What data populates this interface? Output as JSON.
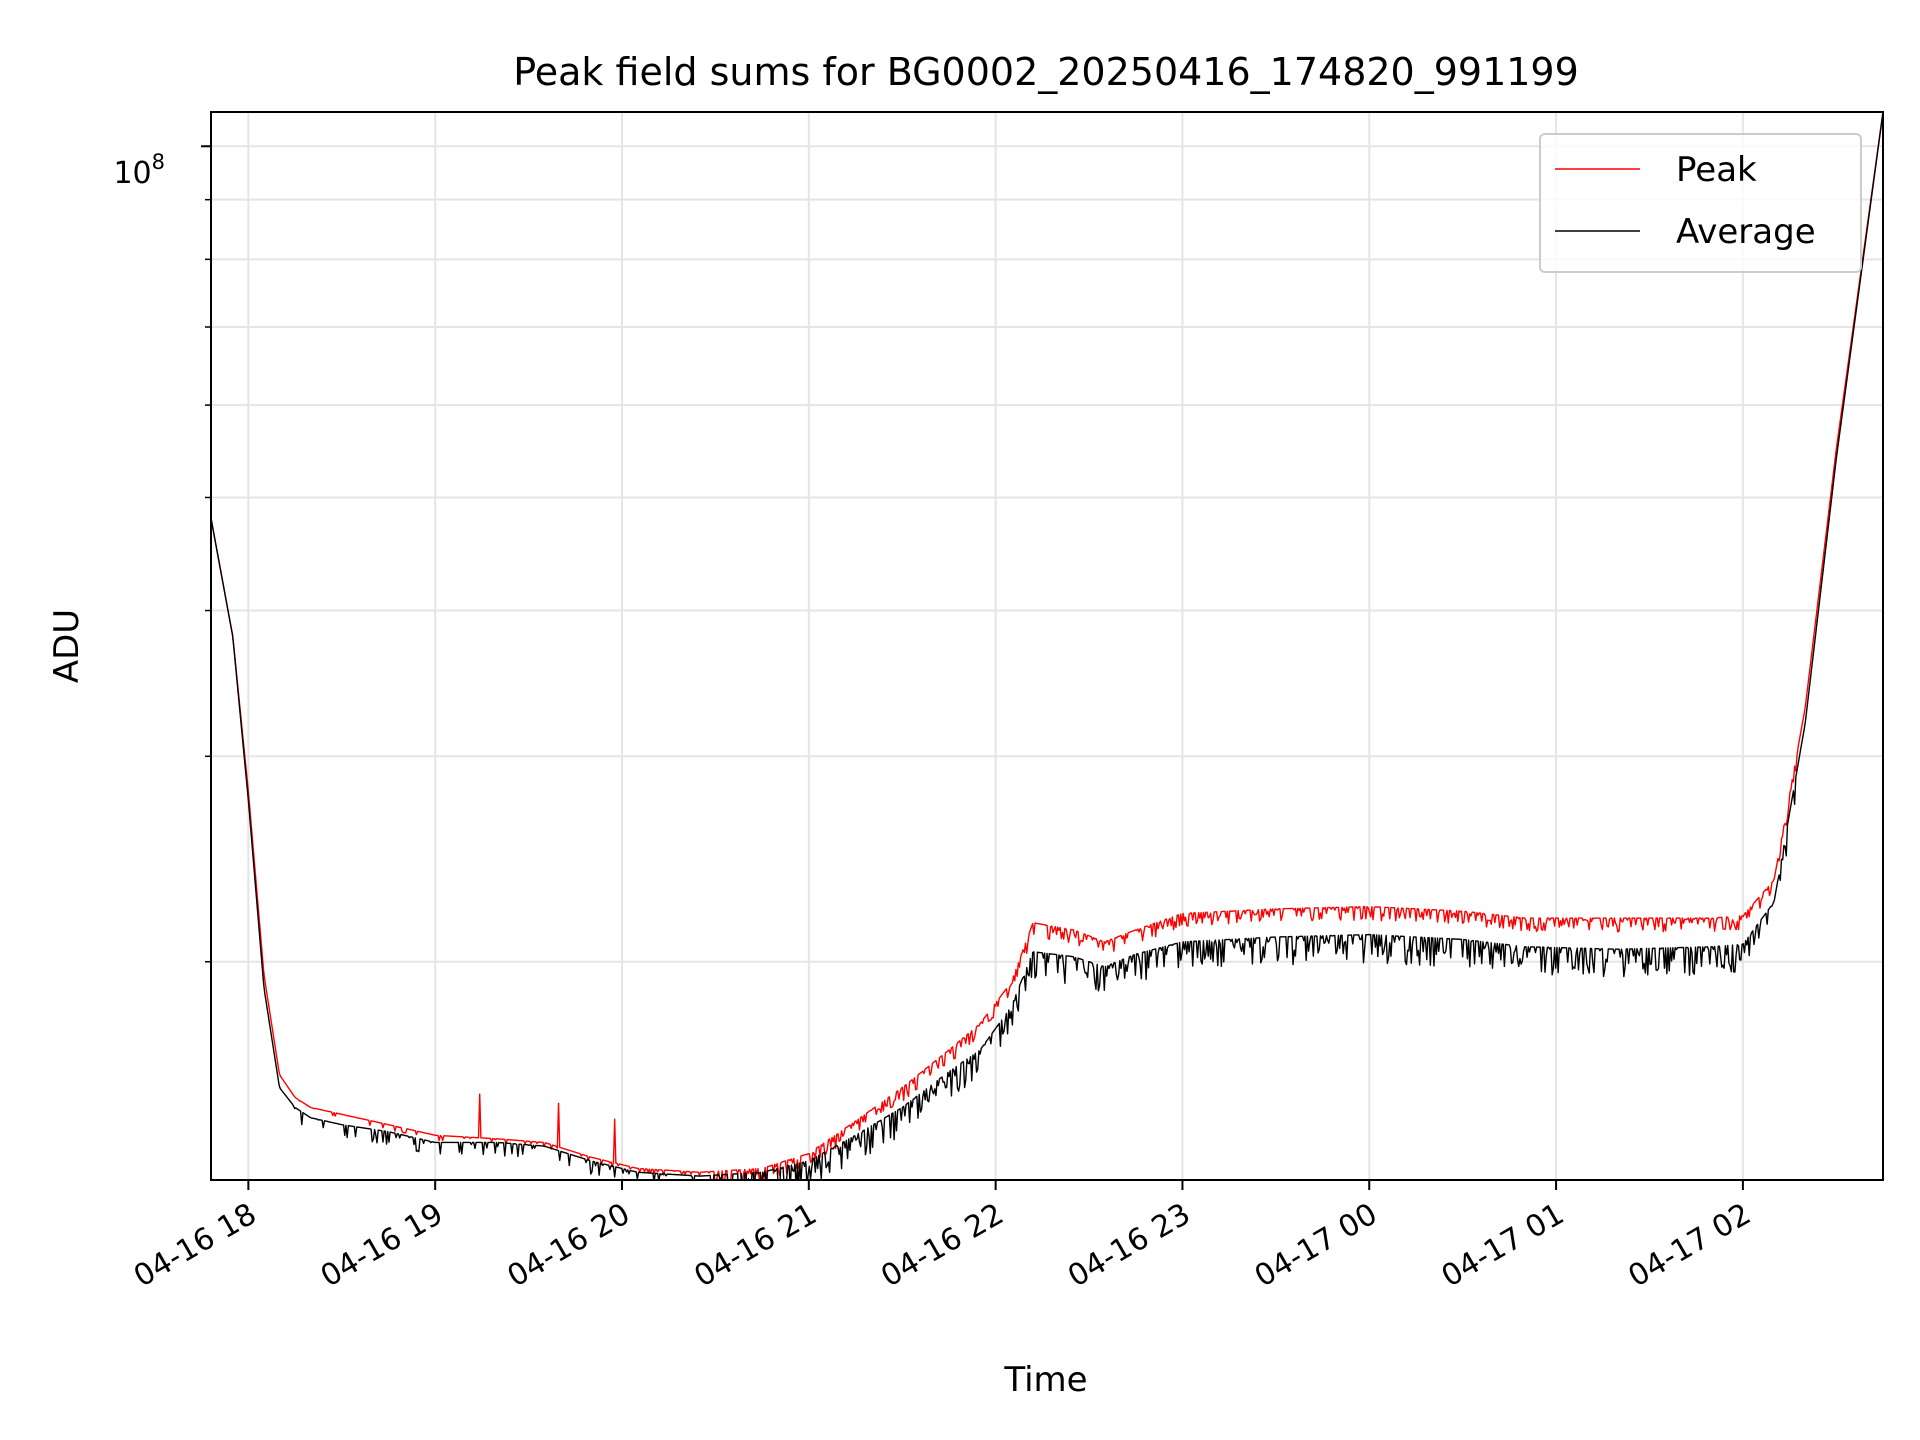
{
  "chart_data": {
    "type": "line",
    "title": "Peak field sums for BG0002_20250416_174820_991199",
    "xlabel": "Time",
    "ylabel": "ADU",
    "y_scale": "log",
    "y_tick_base": "10",
    "y_tick_exponent": "8",
    "ylim": [
      13000000,
      107000000
    ],
    "xlim": [
      "2025-04-16 17:48",
      "2025-04-17 02:45"
    ],
    "x_tick_labels": [
      "04-16 18",
      "04-16 19",
      "04-16 20",
      "04-16 21",
      "04-16 22",
      "04-16 23",
      "04-17 00",
      "04-17 01",
      "04-17 02"
    ],
    "x_ticks": [
      "2025-04-16 18:00",
      "2025-04-16 19:00",
      "2025-04-16 20:00",
      "2025-04-16 21:00",
      "2025-04-16 22:00",
      "2025-04-16 23:00",
      "2025-04-17 00:00",
      "2025-04-17 01:00",
      "2025-04-17 02:00"
    ],
    "y_minor_ticks": [
      20000000,
      30000000,
      40000000,
      50000000,
      60000000,
      70000000,
      80000000,
      90000000
    ],
    "grid": true,
    "legend": "upper right",
    "series": [
      {
        "name": "Peak",
        "color": "#ff0000",
        "x": [
          "2025-04-16 17:48",
          "2025-04-16 17:55",
          "2025-04-16 18:00",
          "2025-04-16 18:05",
          "2025-04-16 18:10",
          "2025-04-16 18:15",
          "2025-04-16 18:20",
          "2025-04-16 18:30",
          "2025-04-16 18:45",
          "2025-04-16 19:00",
          "2025-04-16 19:20",
          "2025-04-16 19:35",
          "2025-04-16 19:50",
          "2025-04-16 20:05",
          "2025-04-16 20:25",
          "2025-04-16 20:45",
          "2025-04-16 21:00",
          "2025-04-16 21:15",
          "2025-04-16 21:30",
          "2025-04-16 21:45",
          "2025-04-16 21:55",
          "2025-04-16 22:05",
          "2025-04-16 22:12",
          "2025-04-16 22:25",
          "2025-04-16 22:35",
          "2025-04-16 22:45",
          "2025-04-16 23:00",
          "2025-04-16 23:30",
          "2025-04-17 00:00",
          "2025-04-17 00:30",
          "2025-04-17 00:50",
          "2025-04-17 01:20",
          "2025-04-17 01:50",
          "2025-04-17 02:00",
          "2025-04-17 02:10",
          "2025-04-17 02:20",
          "2025-04-17 02:30",
          "2025-04-17 02:45"
        ],
        "values": [
          48000000,
          38000000,
          28000000,
          19500000,
          16000000,
          15300000,
          15000000,
          14800000,
          14500000,
          14200000,
          14100000,
          14000000,
          13600000,
          13300000,
          13200000,
          13300000,
          13700000,
          14600000,
          15600000,
          16800000,
          17700000,
          19200000,
          21600000,
          21300000,
          20800000,
          21300000,
          22000000,
          22200000,
          22300000,
          22100000,
          21800000,
          21800000,
          21800000,
          21900000,
          23500000,
          33000000,
          55000000,
          107000000
        ]
      },
      {
        "name": "Average",
        "color": "#000000",
        "x": [
          "2025-04-16 17:48",
          "2025-04-16 17:55",
          "2025-04-16 18:00",
          "2025-04-16 18:05",
          "2025-04-16 18:10",
          "2025-04-16 18:15",
          "2025-04-16 18:20",
          "2025-04-16 18:30",
          "2025-04-16 18:45",
          "2025-04-16 19:00",
          "2025-04-16 19:20",
          "2025-04-16 19:35",
          "2025-04-16 19:50",
          "2025-04-16 20:05",
          "2025-04-16 20:25",
          "2025-04-16 20:45",
          "2025-04-16 21:00",
          "2025-04-16 21:15",
          "2025-04-16 21:30",
          "2025-04-16 21:45",
          "2025-04-16 21:55",
          "2025-04-16 22:05",
          "2025-04-16 22:12",
          "2025-04-16 22:25",
          "2025-04-16 22:35",
          "2025-04-16 22:45",
          "2025-04-16 23:00",
          "2025-04-16 23:30",
          "2025-04-17 00:00",
          "2025-04-17 00:30",
          "2025-04-17 00:50",
          "2025-04-17 01:20",
          "2025-04-17 01:50",
          "2025-04-17 02:00",
          "2025-04-17 02:10",
          "2025-04-17 02:20",
          "2025-04-17 02:30",
          "2025-04-17 02:45"
        ],
        "values": [
          48000000,
          38000000,
          27500000,
          19000000,
          15600000,
          15000000,
          14700000,
          14500000,
          14300000,
          14000000,
          14000000,
          13900000,
          13500000,
          13200000,
          13100000,
          13200000,
          13500000,
          14200000,
          15000000,
          16100000,
          16800000,
          18300000,
          20400000,
          20200000,
          19800000,
          20300000,
          20800000,
          21000000,
          21100000,
          20900000,
          20600000,
          20500000,
          20600000,
          20700000,
          22500000,
          32000000,
          54000000,
          107000000
        ]
      }
    ]
  }
}
